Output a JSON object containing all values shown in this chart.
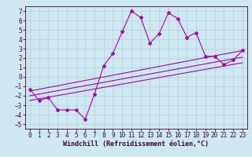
{
  "title": "",
  "xlabel": "Windchill (Refroidissement éolien,°C)",
  "background_color": "#cde8f0",
  "grid_color": "#aacccc",
  "line_color": "#aa00aa",
  "xlim": [
    -0.5,
    23.5
  ],
  "ylim": [
    -5.5,
    7.5
  ],
  "xticks": [
    0,
    1,
    2,
    3,
    4,
    5,
    6,
    7,
    8,
    9,
    10,
    11,
    12,
    13,
    14,
    15,
    16,
    17,
    18,
    19,
    20,
    21,
    22,
    23
  ],
  "yticks": [
    -5,
    -4,
    -3,
    -2,
    -1,
    0,
    1,
    2,
    3,
    4,
    5,
    6,
    7
  ],
  "series1_x": [
    0,
    1,
    2,
    3,
    4,
    5,
    6,
    7,
    8,
    9,
    10,
    11,
    12,
    13,
    14,
    15,
    16,
    17,
    18,
    19,
    20,
    21,
    22,
    23
  ],
  "series1_y": [
    -1.3,
    -2.5,
    -2.2,
    -3.5,
    -3.5,
    -3.5,
    -4.5,
    -1.8,
    1.2,
    2.5,
    4.8,
    7.0,
    6.3,
    3.6,
    4.6,
    6.8,
    6.2,
    4.2,
    4.7,
    2.2,
    2.2,
    1.3,
    1.8,
    2.8
  ],
  "series2_x": [
    0,
    23
  ],
  "series2_y": [
    -1.5,
    2.8
  ],
  "series3_x": [
    0,
    23
  ],
  "series3_y": [
    -2.5,
    1.5
  ],
  "series4_x": [
    0,
    23
  ],
  "series4_y": [
    -2.0,
    2.1
  ],
  "marker": "D",
  "markersize": 2,
  "linewidth": 0.8,
  "xlabel_fontsize": 6,
  "tick_fontsize": 5.5
}
